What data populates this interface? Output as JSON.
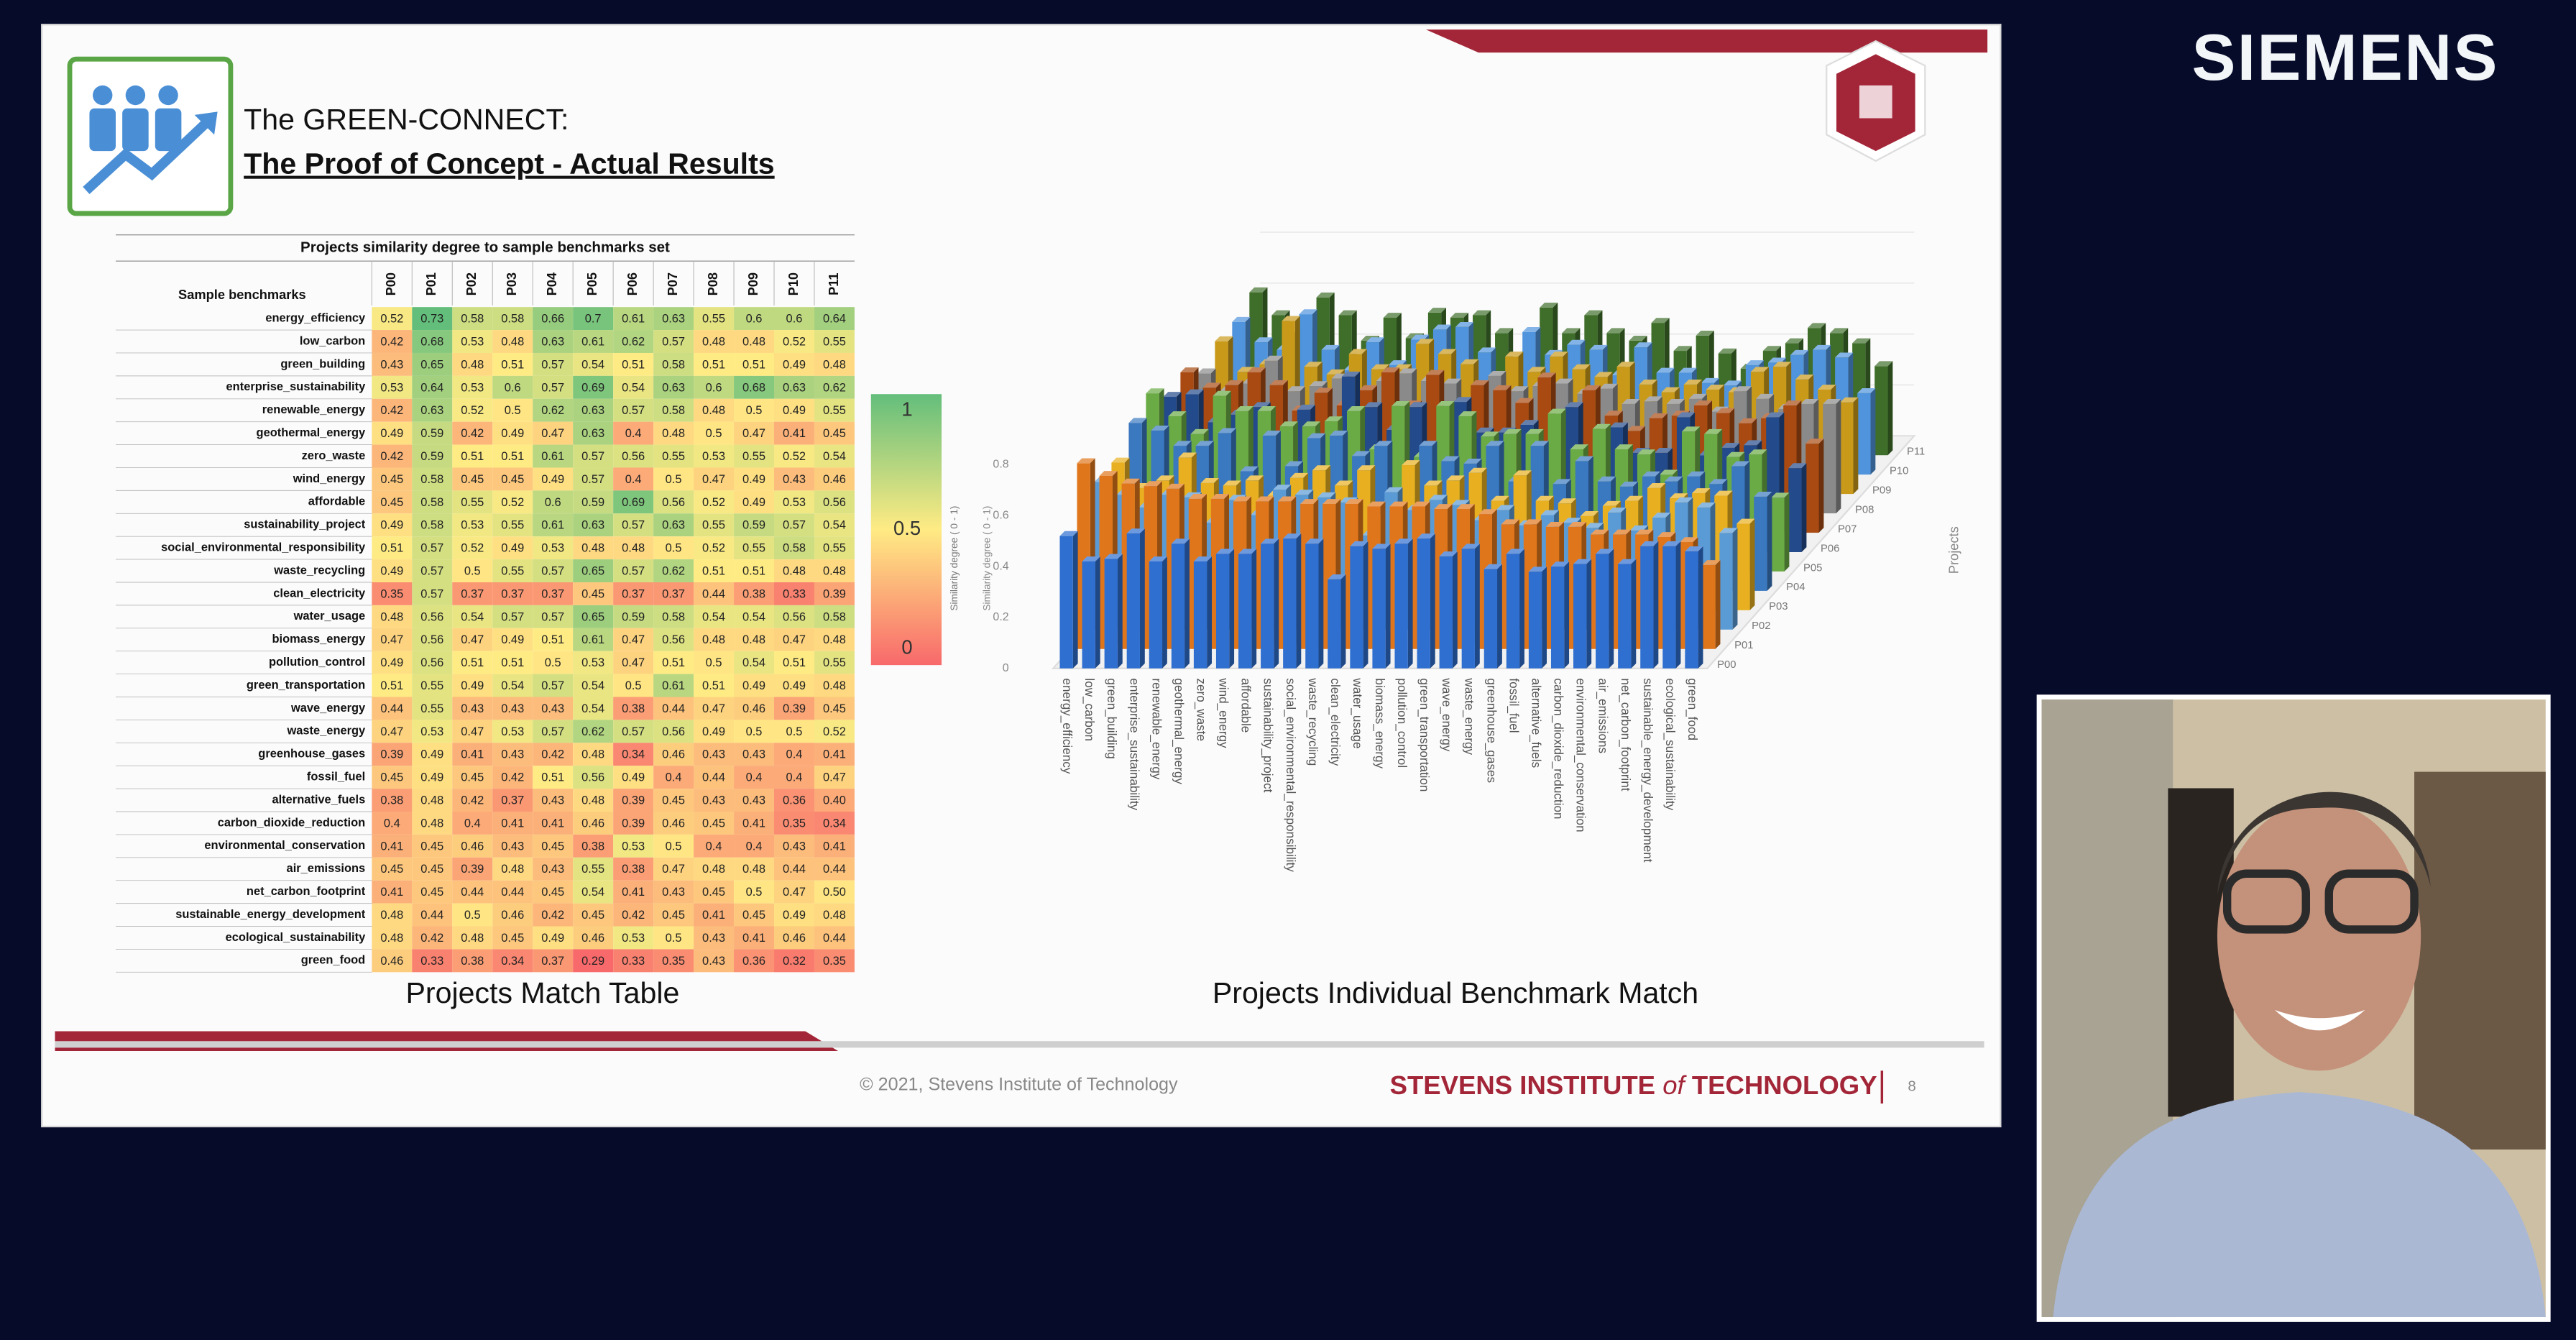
{
  "brand": "SIEMENS",
  "slide": {
    "title_line1": "The GREEN-CONNECT:",
    "title_line2": "The Proof of Concept - Actual Results",
    "table": {
      "title": "Projects similarity degree to sample benchmarks set",
      "row_header": "Sample benchmarks",
      "columns": [
        "P00",
        "P01",
        "P02",
        "P03",
        "P04",
        "P05",
        "P06",
        "P07",
        "P08",
        "P09",
        "P10",
        "P11"
      ],
      "rows": [
        {
          "label": "energy_efficiency",
          "values": [
            "0.52",
            "0.73",
            "0.58",
            "0.58",
            "0.66",
            "0.7",
            "0.61",
            "0.63",
            "0.55",
            "0.6",
            "0.6",
            "0.64"
          ]
        },
        {
          "label": "low_carbon",
          "values": [
            "0.42",
            "0.68",
            "0.53",
            "0.48",
            "0.63",
            "0.61",
            "0.62",
            "0.57",
            "0.48",
            "0.48",
            "0.52",
            "0.55"
          ]
        },
        {
          "label": "green_building",
          "values": [
            "0.43",
            "0.65",
            "0.48",
            "0.51",
            "0.57",
            "0.54",
            "0.51",
            "0.58",
            "0.51",
            "0.51",
            "0.49",
            "0.48"
          ]
        },
        {
          "label": "enterprise_sustainability",
          "values": [
            "0.53",
            "0.64",
            "0.53",
            "0.6",
            "0.57",
            "0.69",
            "0.54",
            "0.63",
            "0.6",
            "0.68",
            "0.63",
            "0.62"
          ]
        },
        {
          "label": "renewable_energy",
          "values": [
            "0.42",
            "0.63",
            "0.52",
            "0.5",
            "0.62",
            "0.63",
            "0.57",
            "0.58",
            "0.48",
            "0.5",
            "0.49",
            "0.55"
          ]
        },
        {
          "label": "geothermal_energy",
          "values": [
            "0.49",
            "0.59",
            "0.42",
            "0.49",
            "0.47",
            "0.63",
            "0.4",
            "0.48",
            "0.5",
            "0.47",
            "0.41",
            "0.45"
          ]
        },
        {
          "label": "zero_waste",
          "values": [
            "0.42",
            "0.59",
            "0.51",
            "0.51",
            "0.61",
            "0.57",
            "0.56",
            "0.55",
            "0.53",
            "0.55",
            "0.52",
            "0.54"
          ]
        },
        {
          "label": "wind_energy",
          "values": [
            "0.45",
            "0.58",
            "0.45",
            "0.45",
            "0.49",
            "0.57",
            "0.4",
            "0.5",
            "0.47",
            "0.49",
            "0.43",
            "0.46"
          ]
        },
        {
          "label": "affordable",
          "values": [
            "0.45",
            "0.58",
            "0.55",
            "0.52",
            "0.6",
            "0.59",
            "0.69",
            "0.56",
            "0.52",
            "0.49",
            "0.53",
            "0.56"
          ]
        },
        {
          "label": "sustainability_project",
          "values": [
            "0.49",
            "0.58",
            "0.53",
            "0.55",
            "0.61",
            "0.63",
            "0.57",
            "0.63",
            "0.55",
            "0.59",
            "0.57",
            "0.54"
          ]
        },
        {
          "label": "social_environmental_responsibility",
          "values": [
            "0.51",
            "0.57",
            "0.52",
            "0.49",
            "0.53",
            "0.48",
            "0.48",
            "0.5",
            "0.52",
            "0.55",
            "0.58",
            "0.55"
          ]
        },
        {
          "label": "waste_recycling",
          "values": [
            "0.49",
            "0.57",
            "0.5",
            "0.55",
            "0.57",
            "0.65",
            "0.57",
            "0.62",
            "0.51",
            "0.51",
            "0.48",
            "0.48"
          ]
        },
        {
          "label": "clean_electricity",
          "values": [
            "0.35",
            "0.57",
            "0.37",
            "0.37",
            "0.37",
            "0.45",
            "0.37",
            "0.37",
            "0.44",
            "0.38",
            "0.33",
            "0.39"
          ]
        },
        {
          "label": "water_usage",
          "values": [
            "0.48",
            "0.56",
            "0.54",
            "0.57",
            "0.57",
            "0.65",
            "0.59",
            "0.58",
            "0.54",
            "0.54",
            "0.56",
            "0.58"
          ]
        },
        {
          "label": "biomass_energy",
          "values": [
            "0.47",
            "0.56",
            "0.47",
            "0.49",
            "0.51",
            "0.61",
            "0.47",
            "0.56",
            "0.48",
            "0.48",
            "0.47",
            "0.48"
          ]
        },
        {
          "label": "pollution_control",
          "values": [
            "0.49",
            "0.56",
            "0.51",
            "0.51",
            "0.5",
            "0.53",
            "0.47",
            "0.51",
            "0.5",
            "0.54",
            "0.51",
            "0.55"
          ]
        },
        {
          "label": "green_transportation",
          "values": [
            "0.51",
            "0.55",
            "0.49",
            "0.54",
            "0.57",
            "0.54",
            "0.5",
            "0.61",
            "0.51",
            "0.49",
            "0.49",
            "0.48"
          ]
        },
        {
          "label": "wave_energy",
          "values": [
            "0.44",
            "0.55",
            "0.43",
            "0.43",
            "0.43",
            "0.54",
            "0.38",
            "0.44",
            "0.47",
            "0.46",
            "0.39",
            "0.45"
          ]
        },
        {
          "label": "waste_energy",
          "values": [
            "0.47",
            "0.53",
            "0.47",
            "0.53",
            "0.57",
            "0.62",
            "0.57",
            "0.56",
            "0.49",
            "0.5",
            "0.5",
            "0.52"
          ]
        },
        {
          "label": "greenhouse_gases",
          "values": [
            "0.39",
            "0.49",
            "0.41",
            "0.43",
            "0.42",
            "0.48",
            "0.34",
            "0.46",
            "0.43",
            "0.43",
            "0.4",
            "0.41"
          ]
        },
        {
          "label": "fossil_fuel",
          "values": [
            "0.45",
            "0.49",
            "0.45",
            "0.42",
            "0.51",
            "0.56",
            "0.49",
            "0.4",
            "0.44",
            "0.4",
            "0.4",
            "0.47"
          ]
        },
        {
          "label": "alternative_fuels",
          "values": [
            "0.38",
            "0.48",
            "0.42",
            "0.37",
            "0.43",
            "0.48",
            "0.39",
            "0.45",
            "0.43",
            "0.43",
            "0.36",
            "0.40"
          ]
        },
        {
          "label": "carbon_dioxide_reduction",
          "values": [
            "0.4",
            "0.48",
            "0.4",
            "0.41",
            "0.41",
            "0.46",
            "0.39",
            "0.46",
            "0.45",
            "0.41",
            "0.35",
            "0.34"
          ]
        },
        {
          "label": "environmental_conservation",
          "values": [
            "0.41",
            "0.45",
            "0.46",
            "0.43",
            "0.45",
            "0.38",
            "0.53",
            "0.5",
            "0.4",
            "0.4",
            "0.43",
            "0.41"
          ]
        },
        {
          "label": "air_emissions",
          "values": [
            "0.45",
            "0.45",
            "0.39",
            "0.48",
            "0.43",
            "0.55",
            "0.38",
            "0.47",
            "0.48",
            "0.48",
            "0.44",
            "0.44"
          ]
        },
        {
          "label": "net_carbon_footprint",
          "values": [
            "0.41",
            "0.45",
            "0.44",
            "0.44",
            "0.45",
            "0.54",
            "0.41",
            "0.43",
            "0.45",
            "0.5",
            "0.47",
            "0.50"
          ]
        },
        {
          "label": "sustainable_energy_development",
          "values": [
            "0.48",
            "0.44",
            "0.5",
            "0.46",
            "0.42",
            "0.45",
            "0.42",
            "0.45",
            "0.41",
            "0.45",
            "0.49",
            "0.48"
          ]
        },
        {
          "label": "ecological_sustainability",
          "values": [
            "0.48",
            "0.42",
            "0.48",
            "0.45",
            "0.49",
            "0.46",
            "0.53",
            "0.5",
            "0.43",
            "0.41",
            "0.46",
            "0.44"
          ]
        },
        {
          "label": "green_food",
          "values": [
            "0.46",
            "0.33",
            "0.38",
            "0.34",
            "0.37",
            "0.29",
            "0.33",
            "0.35",
            "0.43",
            "0.36",
            "0.32",
            "0.35"
          ]
        }
      ],
      "caption": "Projects Match Table"
    },
    "legend": {
      "labels": [
        1,
        0.5,
        0
      ],
      "axis_label": "Similarity degree ( 0 - 1)"
    },
    "chart": {
      "yticks": [
        0,
        0.2,
        0.4,
        0.6,
        0.8
      ],
      "y_label": "Similarity degree ( 0 - 1)",
      "depth_label": "Projects",
      "series_colors": [
        "#2f6fd0",
        "#e0761c",
        "#5b9bd5",
        "#e8b021",
        "#3a78c0",
        "#6aab45",
        "#234a8a",
        "#a84a12",
        "#8a8a8a",
        "#c99a1a",
        "#4f94dc",
        "#3f6e2a"
      ],
      "caption": "Projects Individual Benchmark Match"
    },
    "footer": {
      "copyright": "© 2021, Stevens Institute of Technology",
      "institute_pre": "STEVENS INSTITUTE",
      "institute_of": "of",
      "institute_post": "TECHNOLOGY",
      "page": "8"
    }
  }
}
